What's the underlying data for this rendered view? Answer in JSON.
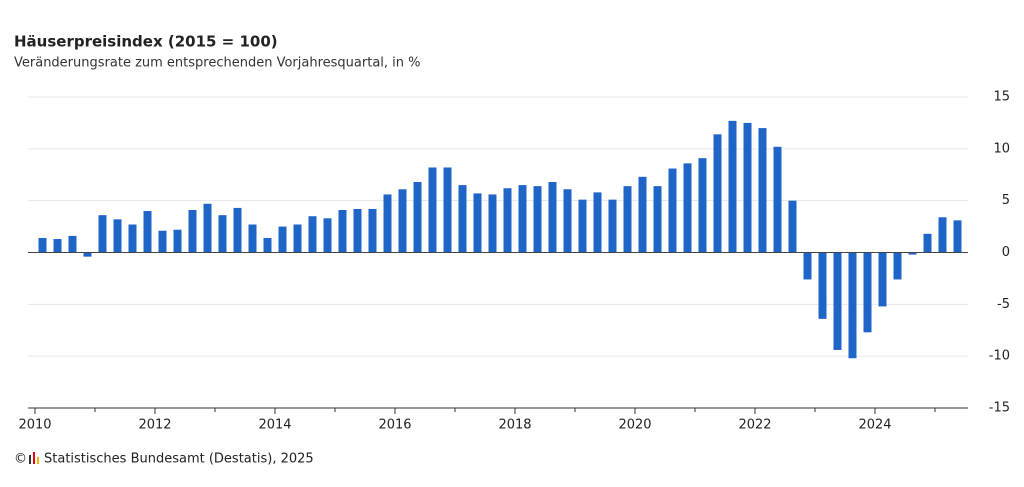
{
  "chart_data": {
    "type": "bar",
    "title": "Häuserpreisindex (2015 = 100)",
    "subtitle": "Veränderungsrate zum entsprechenden Vorjahresquartal, in %",
    "categories": [
      "2010",
      null,
      null,
      null,
      null,
      null,
      null,
      null,
      "2012",
      null,
      null,
      null,
      null,
      null,
      null,
      null,
      "2014",
      null,
      null,
      null,
      null,
      null,
      null,
      null,
      "2016",
      null,
      null,
      null,
      null,
      null,
      null,
      null,
      "2018",
      null,
      null,
      null,
      null,
      null,
      null,
      null,
      "2020",
      null,
      null,
      null,
      null,
      null,
      null,
      null,
      "2022",
      null,
      null,
      null,
      null,
      null,
      null,
      null,
      "2024",
      null,
      null,
      null,
      null,
      null
    ],
    "values": [
      1.4,
      1.3,
      1.6,
      -0.4,
      3.6,
      3.2,
      2.7,
      4.0,
      2.1,
      2.2,
      4.1,
      4.7,
      3.6,
      4.3,
      2.7,
      1.4,
      2.5,
      2.7,
      3.5,
      3.3,
      4.1,
      4.2,
      4.2,
      5.6,
      6.1,
      6.8,
      8.2,
      8.2,
      6.5,
      5.7,
      5.6,
      6.2,
      6.5,
      6.4,
      6.8,
      6.1,
      5.1,
      5.8,
      5.1,
      6.4,
      7.3,
      6.4,
      8.1,
      8.6,
      9.1,
      11.4,
      12.7,
      12.5,
      12.0,
      10.2,
      5.0,
      -2.6,
      -6.4,
      -9.4,
      -10.2,
      -7.7,
      -5.2,
      -2.6,
      -0.2,
      1.8,
      3.4,
      3.1
    ],
    "color": "#1f65c8",
    "ylim": [
      -15,
      15
    ],
    "yticks": [
      15,
      10,
      5,
      0,
      -5,
      -10,
      -15
    ],
    "grid": true,
    "source": "Statistisches Bundesamt (Destatis), 2025",
    "copyright": "©"
  }
}
